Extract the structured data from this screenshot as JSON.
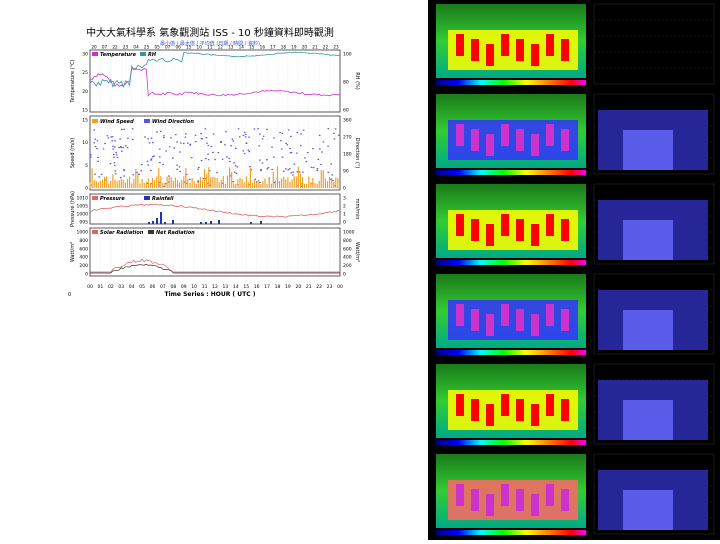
{
  "figure": {
    "title": "中大大氣科學系 氣象觀測站 ISS - 10 秒鐘資料即時觀測",
    "subtitle": "最小值 / 最大值 / 平均值 (日期 / 時間 / 資料)",
    "xlabel": "Time Series : HOUR ( UTC )",
    "top_ticks": [
      "20",
      "07",
      "22",
      "23",
      "04",
      "25",
      "05",
      "07",
      "06",
      "15",
      "10",
      "11",
      "12",
      "13",
      "14",
      "15",
      "16",
      "17",
      "18",
      "19",
      "20",
      "21",
      "22",
      "23"
    ],
    "bottom_ticks": [
      "00",
      "01",
      "02",
      "03",
      "04",
      "05",
      "06",
      "07",
      "08",
      "09",
      "10",
      "11",
      "12",
      "13",
      "14",
      "15",
      "16",
      "17",
      "18",
      "19",
      "20",
      "21",
      "22",
      "23",
      "00"
    ],
    "bottom_edge_labels": [
      "0",
      "0"
    ],
    "panels": [
      {
        "left_axis": "Temperature (°C)",
        "right_axis": "RH (%)",
        "legend": [
          "Temperature",
          "RH"
        ],
        "left_ticks": [
          "30",
          "25",
          "20",
          "15"
        ],
        "right_ticks": [
          "100",
          "80",
          "60"
        ]
      },
      {
        "left_axis": "Speed (m/s)",
        "right_axis": "Direction (°)",
        "legend": [
          "Wind Speed",
          "Wind Direction"
        ],
        "left_ticks": [
          "15",
          "10",
          "5",
          "0"
        ],
        "right_ticks": [
          "360",
          "270",
          "180",
          "90",
          "0"
        ]
      },
      {
        "left_axis": "Pressure (hPa)",
        "right_axis": "mm/min",
        "legend": [
          "Pressure",
          "Rainfall"
        ],
        "left_ticks": [
          "1010",
          "1005",
          "1000",
          "995"
        ],
        "right_ticks": [
          "3",
          "2",
          "1",
          "0"
        ]
      },
      {
        "left_axis": "Watt/m²",
        "right_axis": "Watt/m²",
        "legend": [
          "Solar Radiation",
          "Net Radiation"
        ],
        "left_ticks": [
          "1000",
          "800",
          "600",
          "400",
          "200",
          "0"
        ],
        "right_ticks": [
          "1000",
          "800",
          "600",
          "400",
          "200",
          "0"
        ]
      }
    ]
  },
  "colors": {
    "temperature": "#cc33cc",
    "rh": "#339999",
    "wind_speed": "#f0a020",
    "wind_dir": "#5555dd",
    "pressure": "#dd6666",
    "rainfall": "#2233bb",
    "solar": "#dd6666",
    "net": "#333333"
  }
}
